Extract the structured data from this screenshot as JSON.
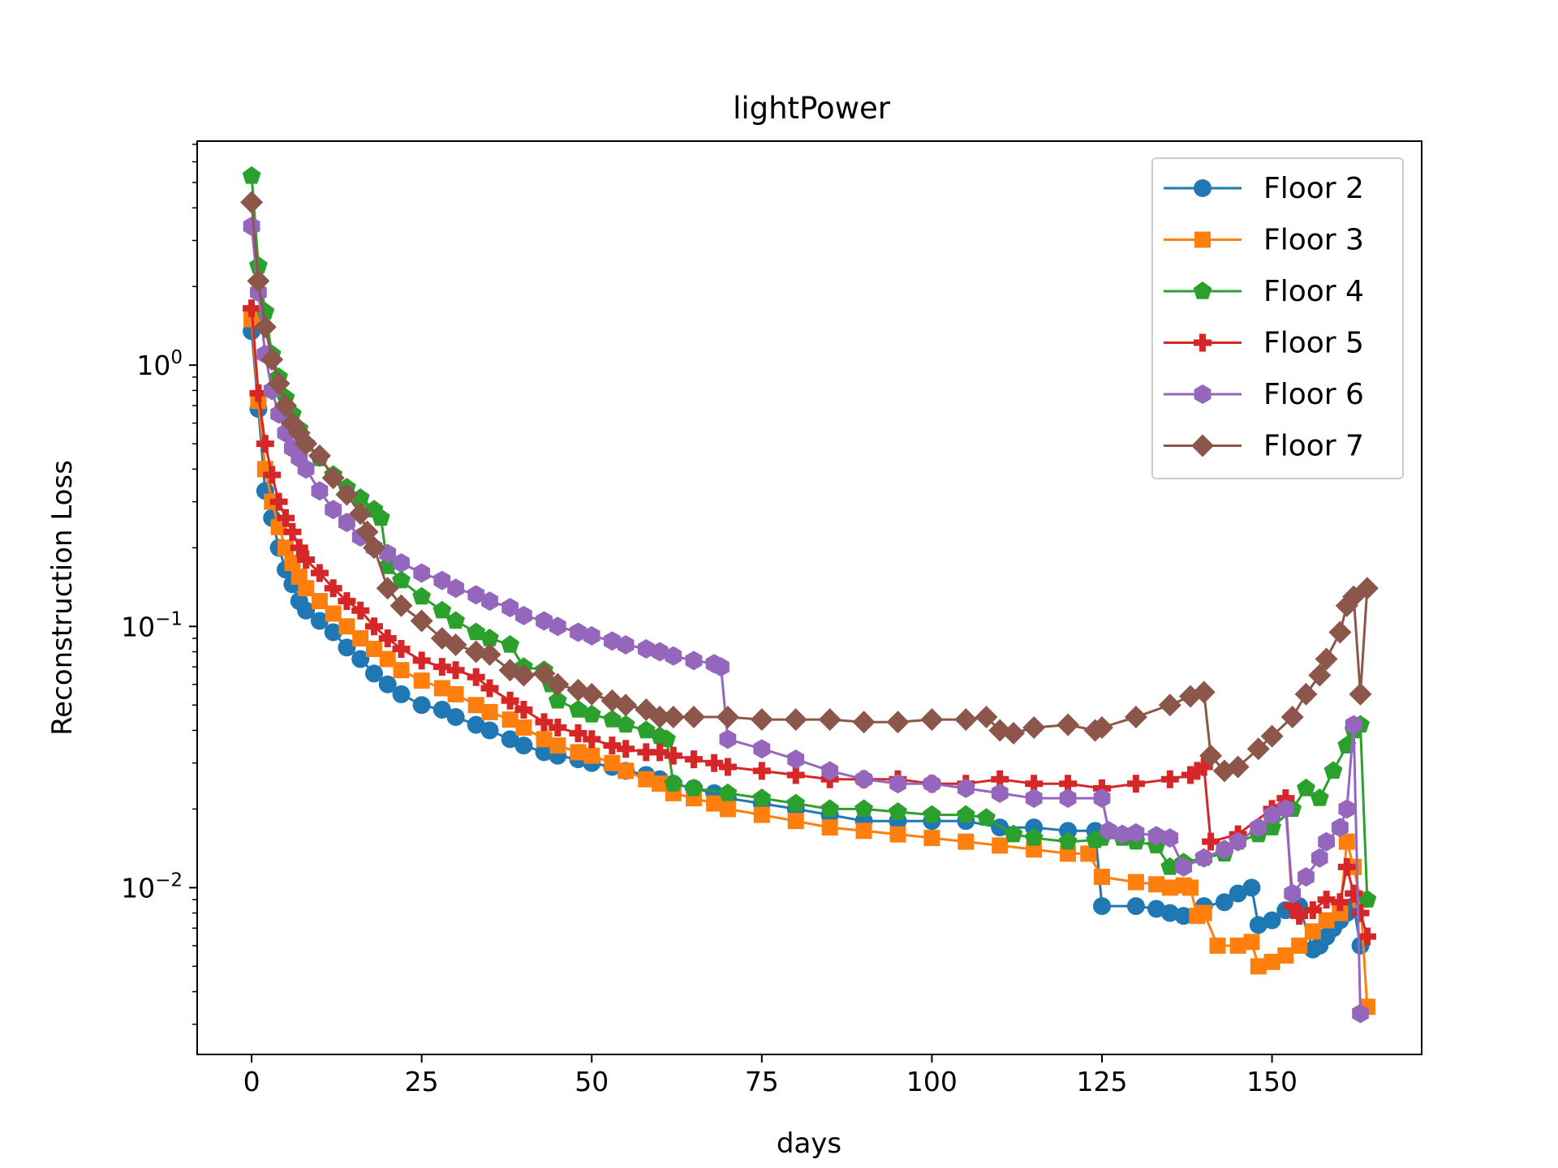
{
  "chart_data": {
    "type": "line",
    "title": "lightPower",
    "xlabel": "days",
    "ylabel": "Reconstruction Loss",
    "xlim": [
      -8,
      172
    ],
    "ylim": [
      0.0023,
      7.2
    ],
    "yscale": "log",
    "xticks": [
      0,
      25,
      50,
      75,
      100,
      125,
      150
    ],
    "yticks": [
      {
        "value": 0.01,
        "base": "10",
        "exp": "−2"
      },
      {
        "value": 0.1,
        "base": "10",
        "exp": "−1"
      },
      {
        "value": 1,
        "base": "10",
        "exp": "0"
      }
    ],
    "grid": false,
    "legend_position": "top-right",
    "series": [
      {
        "name": "Floor 2",
        "color": "#1f77b4",
        "marker": "circle",
        "x": [
          0,
          1,
          2,
          3,
          4,
          5,
          6,
          7,
          8,
          10,
          12,
          14,
          16,
          18,
          20,
          22,
          25,
          28,
          30,
          33,
          35,
          38,
          40,
          43,
          45,
          48,
          50,
          53,
          55,
          58,
          60,
          62,
          65,
          68,
          70,
          75,
          80,
          85,
          90,
          95,
          100,
          105,
          110,
          115,
          120,
          124,
          125,
          130,
          133,
          135,
          137,
          140,
          143,
          145,
          147,
          148,
          150,
          152,
          154,
          156,
          157,
          158,
          159,
          160,
          161,
          162,
          163
        ],
        "y": [
          1.35,
          0.68,
          0.33,
          0.26,
          0.2,
          0.165,
          0.145,
          0.125,
          0.115,
          0.105,
          0.095,
          0.083,
          0.075,
          0.066,
          0.06,
          0.055,
          0.05,
          0.048,
          0.045,
          0.042,
          0.04,
          0.037,
          0.035,
          0.033,
          0.032,
          0.031,
          0.03,
          0.029,
          0.028,
          0.027,
          0.026,
          0.025,
          0.024,
          0.023,
          0.022,
          0.021,
          0.02,
          0.019,
          0.018,
          0.018,
          0.018,
          0.018,
          0.017,
          0.017,
          0.0165,
          0.0165,
          0.0085,
          0.0085,
          0.0083,
          0.008,
          0.0078,
          0.0085,
          0.0088,
          0.0095,
          0.01,
          0.0072,
          0.0075,
          0.0082,
          0.0085,
          0.0058,
          0.006,
          0.0065,
          0.007,
          0.0075,
          0.008,
          0.0085,
          0.006
        ]
      },
      {
        "name": "Floor 3",
        "color": "#ff7f0e",
        "marker": "square",
        "x": [
          0,
          1,
          2,
          3,
          4,
          5,
          6,
          7,
          8,
          10,
          12,
          14,
          16,
          18,
          20,
          22,
          25,
          28,
          30,
          33,
          35,
          38,
          40,
          43,
          45,
          48,
          50,
          53,
          55,
          58,
          60,
          62,
          65,
          68,
          70,
          75,
          80,
          85,
          90,
          95,
          100,
          105,
          110,
          115,
          120,
          123,
          125,
          130,
          133,
          135,
          137,
          138,
          139,
          140,
          142,
          145,
          147,
          148,
          150,
          152,
          154,
          156,
          158,
          160,
          161,
          162,
          163,
          164
        ],
        "y": [
          1.5,
          0.73,
          0.4,
          0.3,
          0.24,
          0.2,
          0.175,
          0.155,
          0.14,
          0.125,
          0.112,
          0.1,
          0.09,
          0.082,
          0.075,
          0.068,
          0.062,
          0.058,
          0.055,
          0.05,
          0.047,
          0.044,
          0.041,
          0.037,
          0.035,
          0.033,
          0.032,
          0.03,
          0.028,
          0.026,
          0.025,
          0.023,
          0.022,
          0.021,
          0.02,
          0.019,
          0.018,
          0.017,
          0.0165,
          0.016,
          0.0155,
          0.015,
          0.0145,
          0.014,
          0.0135,
          0.0135,
          0.011,
          0.0105,
          0.0103,
          0.01,
          0.0102,
          0.01,
          0.0078,
          0.008,
          0.006,
          0.006,
          0.0062,
          0.005,
          0.0052,
          0.0055,
          0.006,
          0.0068,
          0.0075,
          0.008,
          0.015,
          0.012,
          0.009,
          0.0035
        ]
      },
      {
        "name": "Floor 4",
        "color": "#2ca02c",
        "marker": "pentagon",
        "x": [
          0,
          1,
          2,
          3,
          4,
          5,
          6,
          7,
          8,
          10,
          12,
          14,
          16,
          18,
          19,
          20,
          22,
          25,
          28,
          30,
          33,
          35,
          38,
          40,
          43,
          44,
          45,
          48,
          50,
          53,
          55,
          58,
          60,
          61,
          62,
          65,
          70,
          75,
          80,
          85,
          90,
          95,
          100,
          105,
          108,
          112,
          115,
          120,
          124,
          125,
          128,
          130,
          133,
          135,
          137,
          140,
          143,
          145,
          148,
          150,
          153,
          155,
          157,
          159,
          161,
          162,
          163,
          164
        ],
        "y": [
          5.3,
          2.4,
          1.6,
          1.1,
          0.9,
          0.75,
          0.65,
          0.57,
          0.5,
          0.44,
          0.38,
          0.34,
          0.31,
          0.28,
          0.26,
          0.17,
          0.15,
          0.13,
          0.115,
          0.105,
          0.095,
          0.09,
          0.085,
          0.07,
          0.068,
          0.06,
          0.052,
          0.048,
          0.046,
          0.044,
          0.042,
          0.04,
          0.038,
          0.037,
          0.025,
          0.024,
          0.023,
          0.022,
          0.021,
          0.02,
          0.02,
          0.0195,
          0.019,
          0.019,
          0.0185,
          0.016,
          0.0155,
          0.015,
          0.0152,
          0.0155,
          0.0155,
          0.015,
          0.0145,
          0.012,
          0.0125,
          0.013,
          0.0135,
          0.015,
          0.016,
          0.017,
          0.02,
          0.024,
          0.022,
          0.028,
          0.035,
          0.04,
          0.042,
          0.009
        ]
      },
      {
        "name": "Floor 5",
        "color": "#d62728",
        "marker": "plus",
        "x": [
          0,
          1,
          2,
          3,
          4,
          5,
          6,
          7,
          8,
          10,
          12,
          14,
          16,
          18,
          20,
          22,
          25,
          28,
          30,
          33,
          35,
          38,
          40,
          43,
          45,
          48,
          50,
          53,
          55,
          58,
          60,
          62,
          65,
          68,
          70,
          75,
          80,
          85,
          90,
          95,
          100,
          105,
          110,
          115,
          120,
          125,
          130,
          135,
          138,
          139,
          140,
          141,
          145,
          150,
          152,
          153,
          154,
          156,
          158,
          160,
          161,
          162,
          163,
          164
        ],
        "y": [
          1.65,
          0.78,
          0.5,
          0.38,
          0.3,
          0.26,
          0.23,
          0.2,
          0.18,
          0.16,
          0.14,
          0.125,
          0.115,
          0.1,
          0.09,
          0.082,
          0.074,
          0.07,
          0.068,
          0.064,
          0.058,
          0.052,
          0.048,
          0.043,
          0.041,
          0.039,
          0.037,
          0.035,
          0.034,
          0.033,
          0.033,
          0.032,
          0.031,
          0.03,
          0.029,
          0.028,
          0.027,
          0.026,
          0.026,
          0.026,
          0.025,
          0.025,
          0.026,
          0.025,
          0.025,
          0.024,
          0.025,
          0.026,
          0.027,
          0.028,
          0.029,
          0.015,
          0.016,
          0.02,
          0.022,
          0.0085,
          0.0078,
          0.0082,
          0.009,
          0.0088,
          0.012,
          0.0095,
          0.008,
          0.0065
        ]
      },
      {
        "name": "Floor 6",
        "color": "#9467bd",
        "marker": "hexagon",
        "x": [
          0,
          1,
          2,
          3,
          4,
          5,
          6,
          7,
          8,
          10,
          12,
          14,
          16,
          18,
          20,
          22,
          25,
          28,
          30,
          33,
          35,
          38,
          40,
          43,
          45,
          48,
          50,
          53,
          55,
          58,
          60,
          62,
          65,
          68,
          69,
          70,
          75,
          80,
          85,
          90,
          95,
          100,
          105,
          110,
          115,
          120,
          125,
          126,
          128,
          130,
          133,
          135,
          137,
          140,
          143,
          145,
          148,
          150,
          152,
          153,
          155,
          157,
          158,
          160,
          161,
          162,
          163
        ],
        "y": [
          3.4,
          1.9,
          1.1,
          0.8,
          0.65,
          0.55,
          0.48,
          0.44,
          0.4,
          0.33,
          0.28,
          0.25,
          0.22,
          0.2,
          0.19,
          0.175,
          0.16,
          0.15,
          0.14,
          0.132,
          0.125,
          0.118,
          0.11,
          0.105,
          0.1,
          0.095,
          0.092,
          0.088,
          0.085,
          0.082,
          0.08,
          0.077,
          0.074,
          0.072,
          0.07,
          0.037,
          0.034,
          0.031,
          0.028,
          0.026,
          0.025,
          0.025,
          0.024,
          0.023,
          0.022,
          0.022,
          0.022,
          0.0165,
          0.016,
          0.0162,
          0.0158,
          0.0155,
          0.012,
          0.013,
          0.014,
          0.015,
          0.017,
          0.019,
          0.02,
          0.0095,
          0.011,
          0.013,
          0.015,
          0.017,
          0.02,
          0.042,
          0.0033
        ]
      },
      {
        "name": "Floor 7",
        "color": "#8c564b",
        "marker": "diamond",
        "x": [
          0,
          1,
          2,
          3,
          4,
          5,
          6,
          7,
          8,
          10,
          12,
          14,
          16,
          17,
          18,
          20,
          22,
          25,
          28,
          30,
          33,
          35,
          38,
          40,
          43,
          45,
          48,
          50,
          53,
          55,
          58,
          60,
          62,
          65,
          70,
          75,
          80,
          85,
          90,
          95,
          100,
          105,
          108,
          110,
          112,
          115,
          120,
          124,
          125,
          130,
          135,
          138,
          140,
          141,
          143,
          145,
          148,
          150,
          153,
          155,
          157,
          158,
          160,
          161,
          162,
          163,
          164
        ],
        "y": [
          4.2,
          2.1,
          1.4,
          1.05,
          0.85,
          0.7,
          0.6,
          0.55,
          0.5,
          0.45,
          0.37,
          0.32,
          0.27,
          0.23,
          0.2,
          0.14,
          0.12,
          0.105,
          0.09,
          0.085,
          0.08,
          0.078,
          0.068,
          0.065,
          0.066,
          0.06,
          0.057,
          0.055,
          0.052,
          0.05,
          0.048,
          0.045,
          0.045,
          0.045,
          0.045,
          0.044,
          0.044,
          0.044,
          0.043,
          0.043,
          0.044,
          0.044,
          0.045,
          0.04,
          0.039,
          0.041,
          0.042,
          0.04,
          0.041,
          0.045,
          0.05,
          0.054,
          0.056,
          0.032,
          0.028,
          0.029,
          0.034,
          0.038,
          0.045,
          0.055,
          0.065,
          0.075,
          0.095,
          0.12,
          0.13,
          0.055,
          0.14
        ]
      }
    ]
  }
}
